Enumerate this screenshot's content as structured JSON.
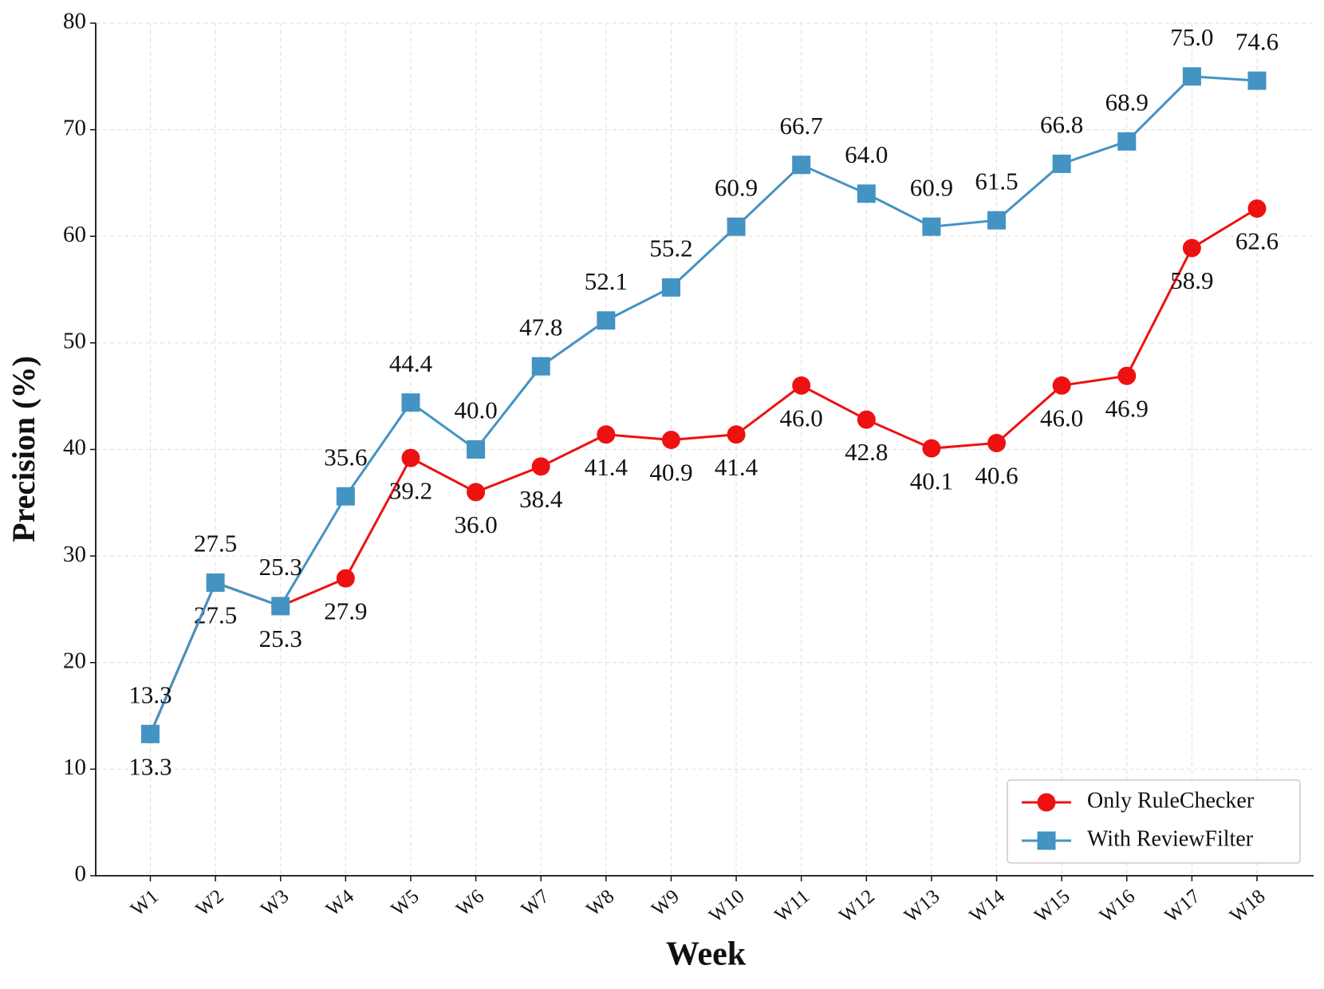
{
  "chart_data": {
    "type": "line",
    "x_label": "Week",
    "y_label": "Precision (%)",
    "categories": [
      "W1",
      "W2",
      "W3",
      "W4",
      "W5",
      "W6",
      "W7",
      "W8",
      "W9",
      "W10",
      "W11",
      "W12",
      "W13",
      "W14",
      "W15",
      "W16",
      "W17",
      "W18"
    ],
    "series": [
      {
        "name": "Only RuleChecker",
        "color": "#ee1111",
        "marker": "circle",
        "label_side": "below",
        "values": [
          13.3,
          27.5,
          25.3,
          27.9,
          39.2,
          36.0,
          38.4,
          41.4,
          40.9,
          41.4,
          46.0,
          42.8,
          40.1,
          40.6,
          46.0,
          46.9,
          58.9,
          62.6
        ],
        "value_labels": [
          "13.3",
          "27.5",
          "25.3",
          "27.9",
          "39.2",
          "36.0",
          "38.4",
          "41.4",
          "40.9",
          "41.4",
          "46.0",
          "42.8",
          "40.1",
          "40.6",
          "46.0",
          "46.9",
          "58.9",
          "62.6"
        ]
      },
      {
        "name": "With ReviewFilter",
        "color": "#4393c3",
        "marker": "square",
        "label_side": "above",
        "values": [
          13.3,
          27.5,
          25.3,
          35.6,
          44.4,
          40.0,
          47.8,
          52.1,
          55.2,
          60.9,
          66.7,
          64.0,
          60.9,
          61.5,
          66.8,
          68.9,
          75.0,
          74.6
        ],
        "value_labels": [
          "13.3",
          "27.5",
          "25.3",
          "35.6",
          "44.4",
          "40.0",
          "47.8",
          "52.1",
          "55.2",
          "60.9",
          "66.7",
          "64.0",
          "60.9",
          "61.5",
          "66.8",
          "68.9",
          "75.0",
          "74.6"
        ]
      }
    ],
    "ylim": [
      0,
      80
    ],
    "yticks": [
      0,
      10,
      20,
      30,
      40,
      50,
      60,
      70,
      80
    ],
    "grid": true,
    "legend": "lower right"
  }
}
